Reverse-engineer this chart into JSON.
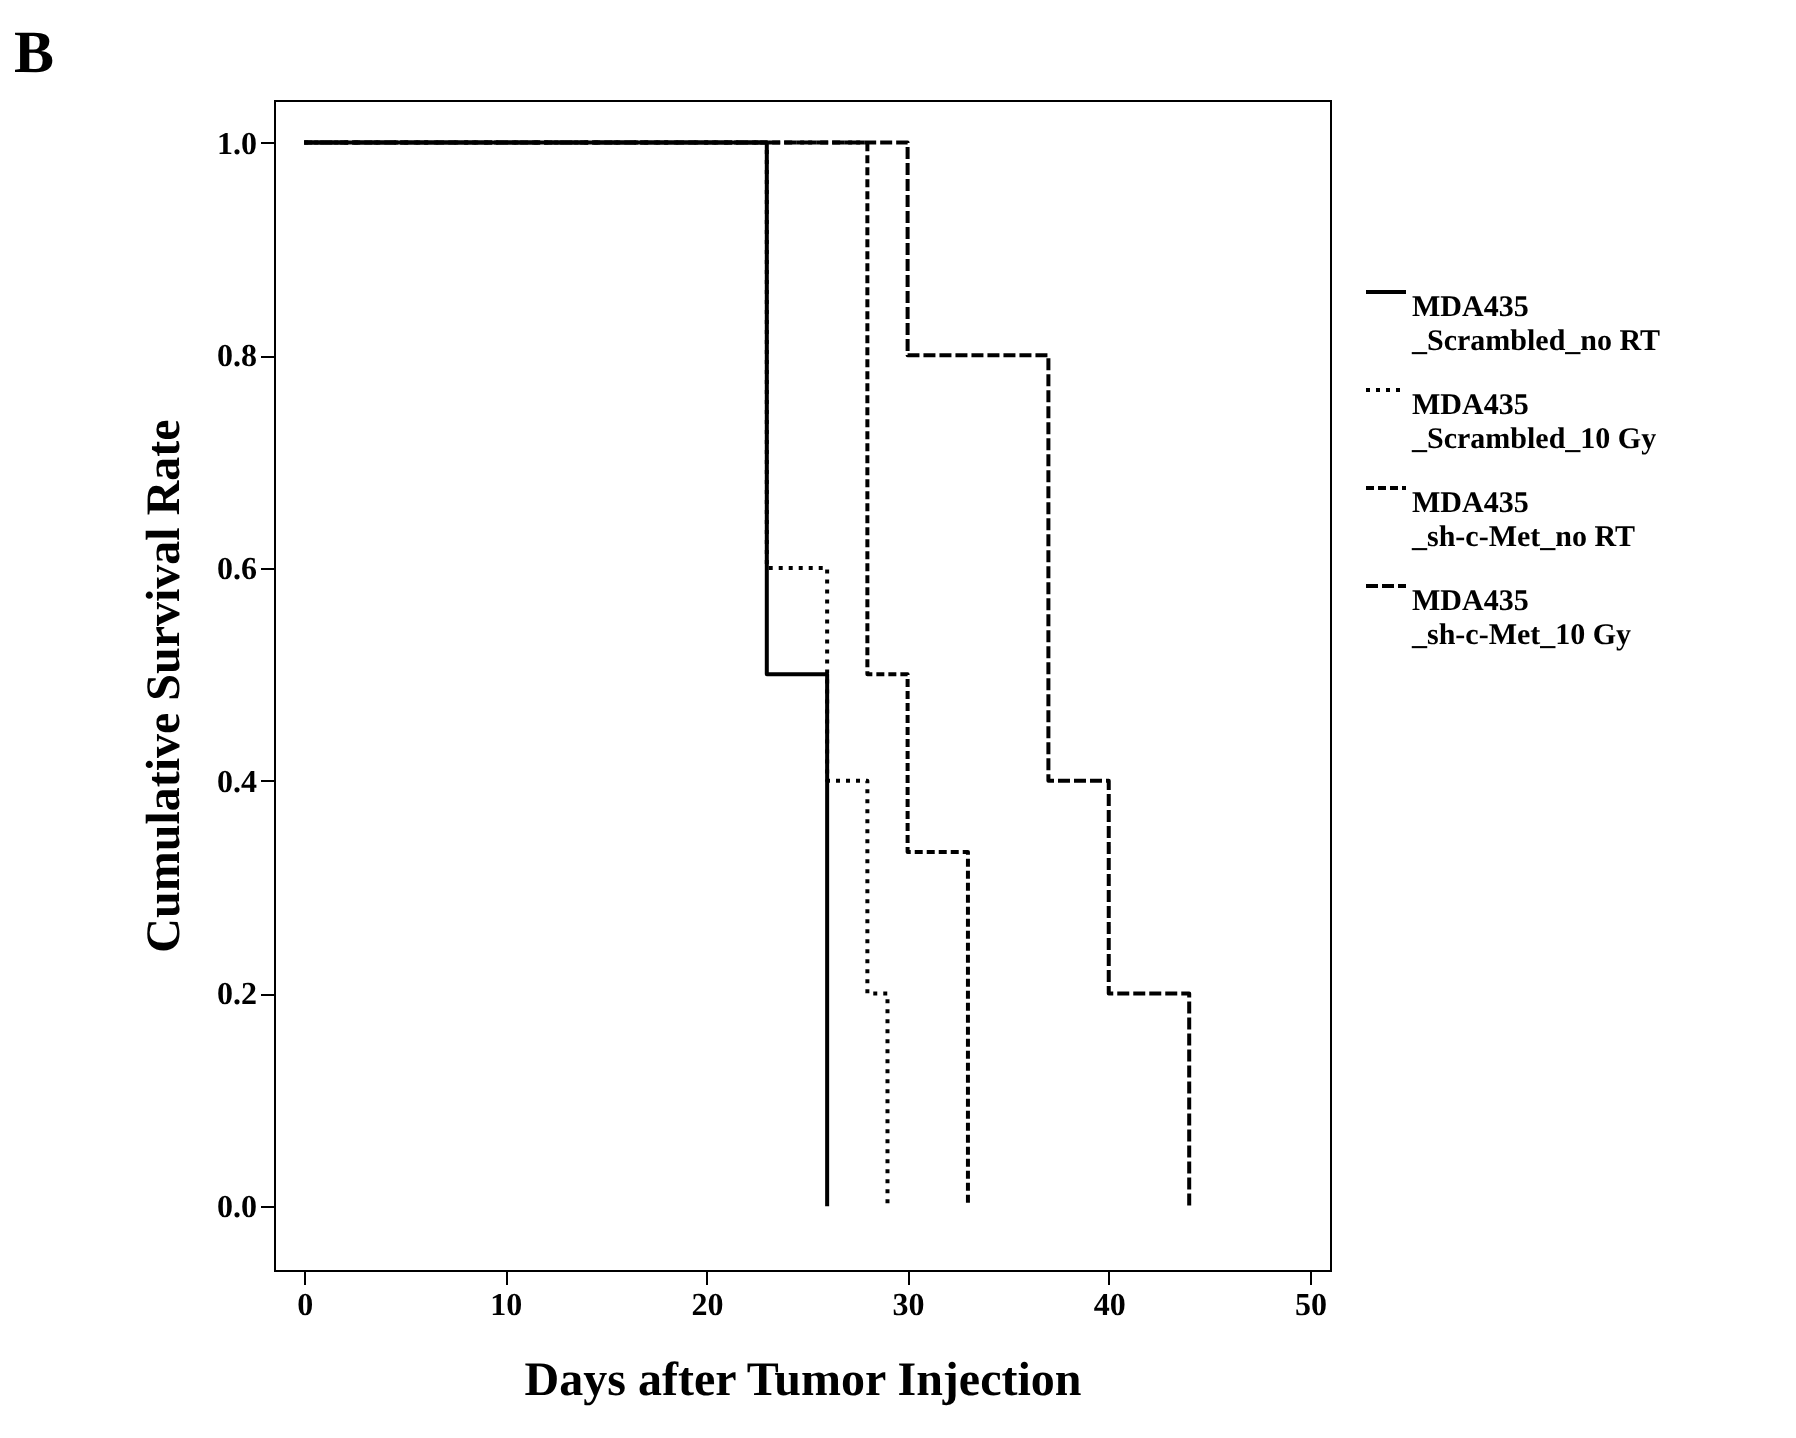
{
  "chart_data": {
    "type": "step",
    "xlabel": "Days after Tumor Injection",
    "ylabel": "Cumulative Survival Rate",
    "annotations": [
      "B"
    ],
    "xlim": [
      -1.5,
      51
    ],
    "xticks": [
      0,
      10,
      20,
      30,
      40,
      50
    ],
    "ylim": [
      -0.06,
      1.04
    ],
    "yticks": [
      {
        "value": 0,
        "label": "0.0"
      },
      0.2,
      0.4,
      0.6,
      0.8,
      {
        "value": 1,
        "label": "1.0"
      }
    ],
    "grid": false,
    "legend": "right",
    "marker": "none",
    "series": [
      {
        "name": "MDA435\n_Scrambled_no RT",
        "color": "#000000",
        "line_style": "solid",
        "x": [
          0,
          23,
          26
        ],
        "values": [
          1,
          0.5,
          0
        ]
      },
      {
        "name": "MDA435\n_Scrambled_10 Gy",
        "color": "#000000",
        "line_style": "dotted",
        "x": [
          0,
          23,
          26,
          28,
          29
        ],
        "values": [
          1,
          0.6,
          0.4,
          0.2,
          0
        ]
      },
      {
        "name": "MDA435\n_sh-c-Met_no RT",
        "color": "#000000",
        "line_style": "dashed",
        "x": [
          0,
          28,
          30,
          33
        ],
        "values": [
          1,
          0.5,
          0.333,
          0
        ]
      },
      {
        "name": "MDA435\n_sh-c-Met_10 Gy",
        "color": "#000000",
        "line_style": "dashed",
        "x": [
          0,
          30,
          37,
          40,
          44
        ],
        "values": [
          1,
          0.8,
          0.4,
          0.2,
          0
        ]
      }
    ]
  }
}
